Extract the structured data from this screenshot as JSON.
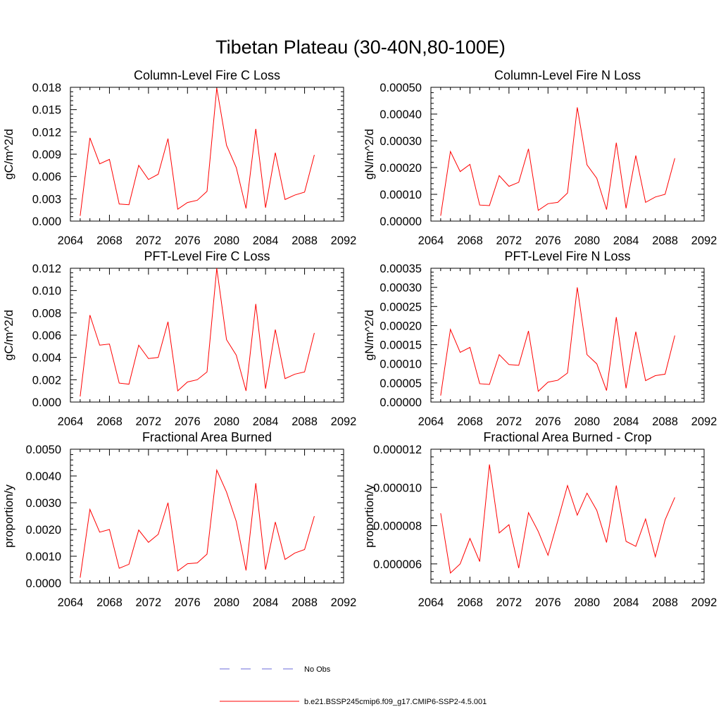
{
  "figure": {
    "title": "Tibetan Plateau (30-40N,80-100E)"
  },
  "chart_data": [
    {
      "type": "line",
      "title": "Column-Level Fire C Loss",
      "ylabel": "gC/m^2/d",
      "xlim": [
        2064,
        2092
      ],
      "ylim": [
        0,
        0.018
      ],
      "xticks": [
        2064,
        2068,
        2072,
        2076,
        2080,
        2084,
        2088,
        2092
      ],
      "xtick_labels": [
        "2064",
        "2068",
        "2072",
        "2076",
        "2080",
        "2084",
        "2088",
        "2092"
      ],
      "yticks": [
        0,
        0.003,
        0.006,
        0.009,
        0.012,
        0.015,
        0.018
      ],
      "ytick_labels": [
        "0.000",
        "0.003",
        "0.006",
        "0.009",
        "0.012",
        "0.015",
        "0.018"
      ],
      "x": [
        2065,
        2066,
        2067,
        2068,
        2069,
        2070,
        2071,
        2072,
        2073,
        2074,
        2075,
        2076,
        2077,
        2078,
        2079,
        2080,
        2081,
        2082,
        2083,
        2084,
        2085,
        2086,
        2087,
        2088,
        2089
      ],
      "series": [
        {
          "name": "b.e21.BSSP245cmip6.f09_g17.CMIP6-SSP2-4.5.001",
          "values": [
            0.0007,
            0.0112,
            0.0077,
            0.0083,
            0.0023,
            0.0022,
            0.0075,
            0.0056,
            0.0063,
            0.0111,
            0.0016,
            0.0025,
            0.0028,
            0.004,
            0.0179,
            0.0102,
            0.0072,
            0.0017,
            0.0124,
            0.0018,
            0.0092,
            0.0029,
            0.0035,
            0.0039,
            0.0089
          ]
        }
      ]
    },
    {
      "type": "line",
      "title": "Column-Level Fire N Loss",
      "ylabel": "gN/m^2/d",
      "xlim": [
        2064,
        2092
      ],
      "ylim": [
        0,
        0.0005
      ],
      "xticks": [
        2064,
        2068,
        2072,
        2076,
        2080,
        2084,
        2088,
        2092
      ],
      "xtick_labels": [
        "2064",
        "2068",
        "2072",
        "2076",
        "2080",
        "2084",
        "2088",
        "2092"
      ],
      "yticks": [
        0,
        0.0001,
        0.0002,
        0.0003,
        0.0004,
        0.0005
      ],
      "ytick_labels": [
        "0.00000",
        "0.00010",
        "0.00020",
        "0.00030",
        "0.00040",
        "0.00050"
      ],
      "x": [
        2065,
        2066,
        2067,
        2068,
        2069,
        2070,
        2071,
        2072,
        2073,
        2074,
        2075,
        2076,
        2077,
        2078,
        2079,
        2080,
        2081,
        2082,
        2083,
        2084,
        2085,
        2086,
        2087,
        2088,
        2089
      ],
      "series": [
        {
          "name": "b.e21.BSSP245cmip6.f09_g17.CMIP6-SSP2-4.5.001",
          "values": [
            2e-05,
            0.00026,
            0.000185,
            0.000212,
            6e-05,
            5.8e-05,
            0.00017,
            0.00013,
            0.000145,
            0.00027,
            4e-05,
            6.5e-05,
            7e-05,
            0.000105,
            0.000425,
            0.00021,
            0.00016,
            4.3e-05,
            0.000293,
            4.8e-05,
            0.000245,
            7e-05,
            9e-05,
            0.0001,
            0.000235
          ]
        }
      ]
    },
    {
      "type": "line",
      "title": "PFT-Level Fire C Loss",
      "ylabel": "gC/m^2/d",
      "xlim": [
        2064,
        2092
      ],
      "ylim": [
        0,
        0.012
      ],
      "xticks": [
        2064,
        2068,
        2072,
        2076,
        2080,
        2084,
        2088,
        2092
      ],
      "xtick_labels": [
        "2064",
        "2068",
        "2072",
        "2076",
        "2080",
        "2084",
        "2088",
        "2092"
      ],
      "yticks": [
        0,
        0.002,
        0.004,
        0.006,
        0.008,
        0.01,
        0.012
      ],
      "ytick_labels": [
        "0.000",
        "0.002",
        "0.004",
        "0.006",
        "0.008",
        "0.010",
        "0.012"
      ],
      "x": [
        2065,
        2066,
        2067,
        2068,
        2069,
        2070,
        2071,
        2072,
        2073,
        2074,
        2075,
        2076,
        2077,
        2078,
        2079,
        2080,
        2081,
        2082,
        2083,
        2084,
        2085,
        2086,
        2087,
        2088,
        2089
      ],
      "series": [
        {
          "name": "b.e21.BSSP245cmip6.f09_g17.CMIP6-SSP2-4.5.001",
          "values": [
            0.0005,
            0.0078,
            0.0051,
            0.0052,
            0.0017,
            0.0016,
            0.0051,
            0.0039,
            0.004,
            0.0072,
            0.001,
            0.0018,
            0.002,
            0.0027,
            0.012,
            0.0056,
            0.0042,
            0.001,
            0.0088,
            0.0012,
            0.0065,
            0.0021,
            0.0025,
            0.0027,
            0.0062
          ]
        }
      ]
    },
    {
      "type": "line",
      "title": "PFT-Level Fire N Loss",
      "ylabel": "gN/m^2/d",
      "xlim": [
        2064,
        2092
      ],
      "ylim": [
        0,
        0.00035
      ],
      "xticks": [
        2064,
        2068,
        2072,
        2076,
        2080,
        2084,
        2088,
        2092
      ],
      "xtick_labels": [
        "2064",
        "2068",
        "2072",
        "2076",
        "2080",
        "2084",
        "2088",
        "2092"
      ],
      "yticks": [
        0,
        5e-05,
        0.0001,
        0.00015,
        0.0002,
        0.00025,
        0.0003,
        0.00035
      ],
      "ytick_labels": [
        "0.00000",
        "0.00005",
        "0.00010",
        "0.00015",
        "0.00020",
        "0.00025",
        "0.00030",
        "0.00035"
      ],
      "x": [
        2065,
        2066,
        2067,
        2068,
        2069,
        2070,
        2071,
        2072,
        2073,
        2074,
        2075,
        2076,
        2077,
        2078,
        2079,
        2080,
        2081,
        2082,
        2083,
        2084,
        2085,
        2086,
        2087,
        2088,
        2089
      ],
      "series": [
        {
          "name": "b.e21.BSSP245cmip6.f09_g17.CMIP6-SSP2-4.5.001",
          "values": [
            1.7e-05,
            0.00019,
            0.00013,
            0.000143,
            4.8e-05,
            4.6e-05,
            0.000124,
            9.8e-05,
            9.6e-05,
            0.000186,
            2.8e-05,
            5.2e-05,
            5.7e-05,
            7.6e-05,
            0.0003,
            0.000124,
            0.0001,
            3e-05,
            0.000222,
            3.6e-05,
            0.000184,
            5.6e-05,
            6.9e-05,
            7.3e-05,
            0.000174
          ]
        }
      ]
    },
    {
      "type": "line",
      "title": "Fractional Area Burned",
      "ylabel": "proportion/y",
      "xlim": [
        2064,
        2092
      ],
      "ylim": [
        0,
        0.005
      ],
      "xticks": [
        2064,
        2068,
        2072,
        2076,
        2080,
        2084,
        2088,
        2092
      ],
      "xtick_labels": [
        "2064",
        "2068",
        "2072",
        "2076",
        "2080",
        "2084",
        "2088",
        "2092"
      ],
      "yticks": [
        0,
        0.001,
        0.002,
        0.003,
        0.004,
        0.005
      ],
      "ytick_labels": [
        "0.0000",
        "0.0010",
        "0.0020",
        "0.0030",
        "0.0040",
        "0.0050"
      ],
      "x": [
        2065,
        2066,
        2067,
        2068,
        2069,
        2070,
        2071,
        2072,
        2073,
        2074,
        2075,
        2076,
        2077,
        2078,
        2079,
        2080,
        2081,
        2082,
        2083,
        2084,
        2085,
        2086,
        2087,
        2088,
        2089
      ],
      "series": [
        {
          "name": "b.e21.BSSP245cmip6.f09_g17.CMIP6-SSP2-4.5.001",
          "values": [
            0.0002,
            0.00275,
            0.0019,
            0.002,
            0.00055,
            0.0007,
            0.00198,
            0.00152,
            0.00182,
            0.003,
            0.00045,
            0.00072,
            0.00075,
            0.00108,
            0.00422,
            0.0034,
            0.0023,
            0.00047,
            0.00373,
            0.0005,
            0.00228,
            0.00088,
            0.00112,
            0.00125,
            0.0025
          ]
        }
      ]
    },
    {
      "type": "line",
      "title": "Fractional Area Burned - Crop",
      "ylabel": "proportion/y",
      "xlim": [
        2064,
        2092
      ],
      "ylim": [
        5e-06,
        1.2e-05
      ],
      "xticks": [
        2064,
        2068,
        2072,
        2076,
        2080,
        2084,
        2088,
        2092
      ],
      "xtick_labels": [
        "2064",
        "2068",
        "2072",
        "2076",
        "2080",
        "2084",
        "2088",
        "2092"
      ],
      "yticks": [
        6e-06,
        8e-06,
        1e-05,
        1.2e-05
      ],
      "ytick_labels": [
        "0.000006",
        "0.000008",
        "0.000010",
        "0.000012"
      ],
      "x": [
        2065,
        2066,
        2067,
        2068,
        2069,
        2070,
        2071,
        2072,
        2073,
        2074,
        2075,
        2076,
        2077,
        2078,
        2079,
        2080,
        2081,
        2082,
        2083,
        2084,
        2085,
        2086,
        2087,
        2088,
        2089
      ],
      "series": [
        {
          "name": "b.e21.BSSP245cmip6.f09_g17.CMIP6-SSP2-4.5.001",
          "values": [
            8.65e-06,
            5.52e-06,
            6e-06,
            7.33e-06,
            6.12e-06,
            1.12e-05,
            7.62e-06,
            8.05e-06,
            5.78e-06,
            8.68e-06,
            7.7e-06,
            6.45e-06,
            8.25e-06,
            1.01e-05,
            8.55e-06,
            9.7e-06,
            8.8e-06,
            7.12e-06,
            1.01e-05,
            7.18e-06,
            6.92e-06,
            8.35e-06,
            6.37e-06,
            8.3e-06,
            9.48e-06
          ]
        }
      ]
    }
  ],
  "legend": {
    "items": [
      {
        "label": "No Obs",
        "color": "#6a6ad8",
        "style": "dashed"
      },
      {
        "label": "b.e21.BSSP245cmip6.f09_g17.CMIP6-SSP2-4.5.001",
        "color": "#ff0000",
        "style": "solid"
      }
    ]
  }
}
